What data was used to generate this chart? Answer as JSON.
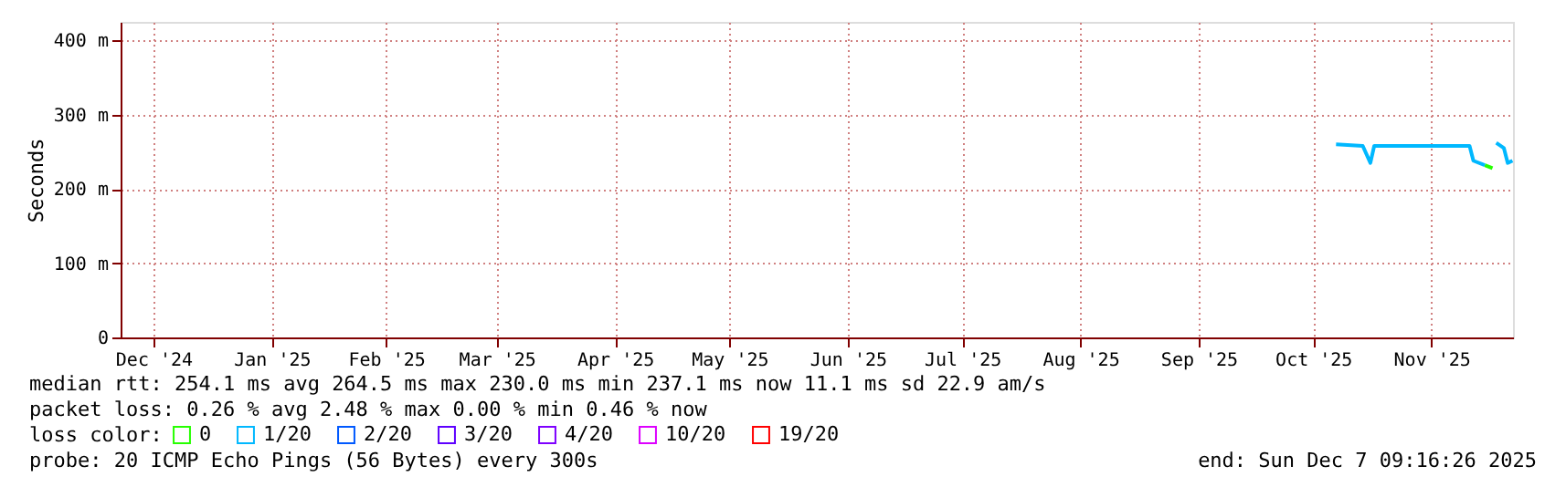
{
  "chart_data": {
    "type": "line",
    "ylabel": "Seconds",
    "legend_title": "loss color:",
    "legend": "bottom",
    "x": [
      "2025-10-22",
      "2025-10-29",
      "2025-10-31",
      "2025-11-01",
      "2025-11-26",
      "2025-11-27",
      "2025-11-30",
      "2025-12-02",
      "2025-12-03",
      "2025-12-05",
      "2025-12-06",
      "2025-12-07T06:00"
    ],
    "series": [
      {
        "name": "0",
        "color": "#26ff00",
        "values": [
          null,
          null,
          null,
          null,
          null,
          null,
          232,
          228,
          null,
          null,
          null,
          null
        ]
      },
      {
        "name": "1/20",
        "color": "#00b8ff",
        "values": [
          260,
          258,
          235,
          258,
          258,
          238,
          232,
          null,
          262,
          255,
          235,
          238
        ]
      },
      {
        "name": "2/20",
        "color": "#0059ff",
        "values": [
          null,
          null,
          null,
          null,
          null,
          null,
          null,
          null,
          null,
          null,
          null,
          null
        ]
      },
      {
        "name": "3/20",
        "color": "#5e00ff",
        "values": [
          null,
          null,
          null,
          null,
          null,
          null,
          null,
          null,
          null,
          null,
          null,
          null
        ]
      },
      {
        "name": "4/20",
        "color": "#7e00ff",
        "values": [
          null,
          null,
          null,
          null,
          null,
          null,
          null,
          null,
          null,
          null,
          null,
          null
        ]
      },
      {
        "name": "10/20",
        "color": "#dd00ff",
        "values": [
          null,
          null,
          null,
          null,
          null,
          null,
          null,
          null,
          null,
          null,
          null,
          null
        ]
      },
      {
        "name": "19/20",
        "color": "#ff0000",
        "values": [
          null,
          null,
          null,
          null,
          null,
          null,
          null,
          null,
          null,
          null,
          null,
          null
        ]
      }
    ],
    "xlim": [
      "2024-12-07T09:16",
      "2025-12-07T09:16"
    ],
    "xticks": [
      {
        "value": "2024-12-16",
        "label": "Dec '24"
      },
      {
        "value": "2025-01-16",
        "label": "Jan '25"
      },
      {
        "value": "2025-02-15",
        "label": "Feb '25"
      },
      {
        "value": "2025-03-16",
        "label": "Mar '25"
      },
      {
        "value": "2025-04-16",
        "label": "Apr '25"
      },
      {
        "value": "2025-05-16",
        "label": "May '25"
      },
      {
        "value": "2025-06-16",
        "label": "Jun '25"
      },
      {
        "value": "2025-07-16",
        "label": "Jul '25"
      },
      {
        "value": "2025-08-16",
        "label": "Aug '25"
      },
      {
        "value": "2025-09-16",
        "label": "Sep '25"
      },
      {
        "value": "2025-10-16",
        "label": "Oct '25"
      },
      {
        "value": "2025-11-16",
        "label": "Nov '25"
      }
    ],
    "ylim": [
      0,
      425
    ],
    "yticks": [
      {
        "value": 0,
        "label": "0"
      },
      {
        "value": 100,
        "label": "100 m"
      },
      {
        "value": 200,
        "label": "200 m"
      },
      {
        "value": 300,
        "label": "300 m"
      },
      {
        "value": 400,
        "label": "400 m"
      }
    ],
    "grid": true,
    "annotations": [
      "median rtt:  254.1 ms avg  264.5 ms max  230.0 ms min  237.1 ms now  11.1 ms sd  22.9   am/s",
      "packet loss: 0.26 % avg  2.48 % max  0.00 % min  0.46 % now",
      "probe:       20 ICMP Echo Pings (56 Bytes) every 300s",
      "end: Sun Dec  7 09:16:26 2025"
    ]
  }
}
